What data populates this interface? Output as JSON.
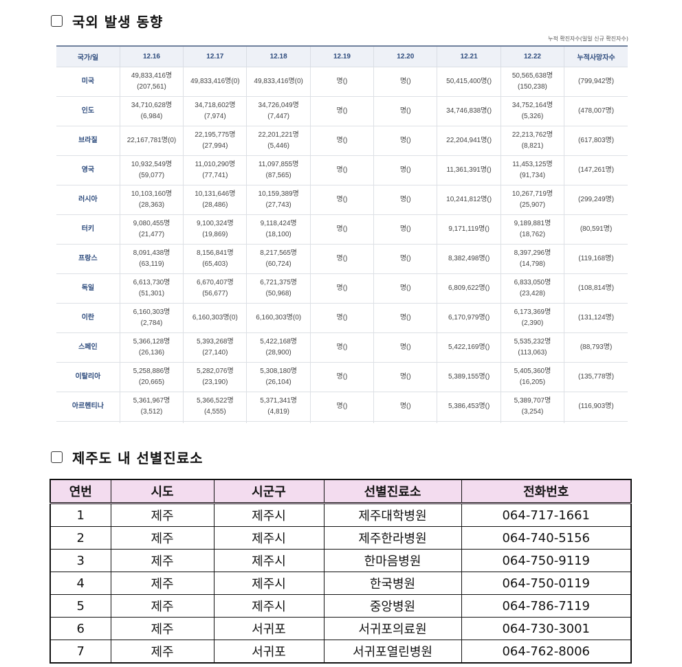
{
  "section1": {
    "title": "국외 발생 동향",
    "note": "누적 확진자수(일일 신규 확진자수)"
  },
  "overseas": {
    "headers": [
      "국가/일",
      "12.16",
      "12.17",
      "12.18",
      "12.19",
      "12.20",
      "12.21",
      "12.22",
      "누적사망자수"
    ],
    "rows": [
      [
        "미국",
        [
          "49,833,416명",
          "(207,561)"
        ],
        [
          "49,833,416명(0)"
        ],
        [
          "49,833,416명(0)"
        ],
        [
          "명()"
        ],
        [
          "명()"
        ],
        [
          "50,415,400명()"
        ],
        [
          "50,565,638명",
          "(150,238)"
        ],
        [
          "(799,942명)"
        ]
      ],
      [
        "인도",
        [
          "34,710,628명",
          "(6,984)"
        ],
        [
          "34,718,602명",
          "(7,974)"
        ],
        [
          "34,726,049명",
          "(7,447)"
        ],
        [
          "명()"
        ],
        [
          "명()"
        ],
        [
          "34,746,838명()"
        ],
        [
          "34,752,164명",
          "(5,326)"
        ],
        [
          "(478,007명)"
        ]
      ],
      [
        "브라질",
        [
          "22,167,781명(0)"
        ],
        [
          "22,195,775명",
          "(27,994)"
        ],
        [
          "22,201,221명",
          "(5,446)"
        ],
        [
          "명()"
        ],
        [
          "명()"
        ],
        [
          "22,204,941명()"
        ],
        [
          "22,213,762명",
          "(8,821)"
        ],
        [
          "(617,803명)"
        ]
      ],
      [
        "영국",
        [
          "10,932,549명",
          "(59,077)"
        ],
        [
          "11,010,290명",
          "(77,741)"
        ],
        [
          "11,097,855명",
          "(87,565)"
        ],
        [
          "명()"
        ],
        [
          "명()"
        ],
        [
          "11,361,391명()"
        ],
        [
          "11,453,125명",
          "(91,734)"
        ],
        [
          "(147,261명)"
        ]
      ],
      [
        "러시아",
        [
          "10,103,160명",
          "(28,363)"
        ],
        [
          "10,131,646명",
          "(28,486)"
        ],
        [
          "10,159,389명",
          "(27,743)"
        ],
        [
          "명()"
        ],
        [
          "명()"
        ],
        [
          "10,241,812명()"
        ],
        [
          "10,267,719명",
          "(25,907)"
        ],
        [
          "(299,249명)"
        ]
      ],
      [
        "터키",
        [
          "9,080,455명",
          "(21,477)"
        ],
        [
          "9,100,324명",
          "(19,869)"
        ],
        [
          "9,118,424명",
          "(18,100)"
        ],
        [
          "명()"
        ],
        [
          "명()"
        ],
        [
          "9,171,119명()"
        ],
        [
          "9,189,881명",
          "(18,762)"
        ],
        [
          "(80,591명)"
        ]
      ],
      [
        "프랑스",
        [
          "8,091,438명",
          "(63,119)"
        ],
        [
          "8,156,841명",
          "(65,403)"
        ],
        [
          "8,217,565명",
          "(60,724)"
        ],
        [
          "명()"
        ],
        [
          "명()"
        ],
        [
          "8,382,498명()"
        ],
        [
          "8,397,296명",
          "(14,798)"
        ],
        [
          "(119,168명)"
        ]
      ],
      [
        "독일",
        [
          "6,613,730명",
          "(51,301)"
        ],
        [
          "6,670,407명",
          "(56,677)"
        ],
        [
          "6,721,375명",
          "(50,968)"
        ],
        [
          "명()"
        ],
        [
          "명()"
        ],
        [
          "6,809,622명()"
        ],
        [
          "6,833,050명",
          "(23,428)"
        ],
        [
          "(108,814명)"
        ]
      ],
      [
        "이란",
        [
          "6,160,303명",
          "(2,784)"
        ],
        [
          "6,160,303명(0)"
        ],
        [
          "6,160,303명(0)"
        ],
        [
          "명()"
        ],
        [
          "명()"
        ],
        [
          "6,170,979명()"
        ],
        [
          "6,173,369명",
          "(2,390)"
        ],
        [
          "(131,124명)"
        ]
      ],
      [
        "스페인",
        [
          "5,366,128명",
          "(26,136)"
        ],
        [
          "5,393,268명",
          "(27,140)"
        ],
        [
          "5,422,168명",
          "(28,900)"
        ],
        [
          "명()"
        ],
        [
          "명()"
        ],
        [
          "5,422,169명()"
        ],
        [
          "5,535,232명",
          "(113,063)"
        ],
        [
          "(88,793명)"
        ]
      ],
      [
        "이탈리아",
        [
          "5,258,886명",
          "(20,665)"
        ],
        [
          "5,282,076명",
          "(23,190)"
        ],
        [
          "5,308,180명",
          "(26,104)"
        ],
        [
          "명()"
        ],
        [
          "명()"
        ],
        [
          "5,389,155명()"
        ],
        [
          "5,405,360명",
          "(16,205)"
        ],
        [
          "(135,778명)"
        ]
      ],
      [
        "아르헨티나",
        [
          "5,361,967명",
          "(3,512)"
        ],
        [
          "5,366,522명",
          "(4,555)"
        ],
        [
          "5,371,341명",
          "(4,819)"
        ],
        [
          "명()"
        ],
        [
          "명()"
        ],
        [
          "5,386,453명()"
        ],
        [
          "5,389,707명",
          "(3,254)"
        ],
        [
          "(116,903명)"
        ]
      ]
    ]
  },
  "section2": {
    "title": "제주도 내 선별진료소"
  },
  "clinics": {
    "headers": [
      "연번",
      "시도",
      "시군구",
      "선별진료소",
      "전화번호"
    ],
    "rows": [
      [
        "1",
        "제주",
        "제주시",
        "제주대학병원",
        "064-717-1661"
      ],
      [
        "2",
        "제주",
        "제주시",
        "제주한라병원",
        "064-740-5156"
      ],
      [
        "3",
        "제주",
        "제주시",
        "한마음병원",
        "064-750-9119"
      ],
      [
        "4",
        "제주",
        "제주시",
        "한국병원",
        "064-750-0119"
      ],
      [
        "5",
        "제주",
        "제주시",
        "중앙병원",
        "064-786-7119"
      ],
      [
        "6",
        "제주",
        "서귀포",
        "서귀포의료원",
        "064-730-3001"
      ],
      [
        "7",
        "제주",
        "서귀포",
        "서귀포열린병원",
        "064-762-8006"
      ]
    ]
  }
}
